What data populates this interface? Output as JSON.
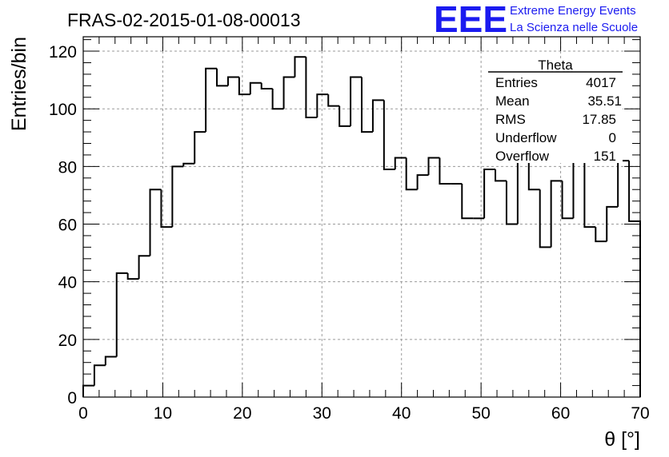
{
  "header": {
    "title": "FRAS-02-2015-01-08-00013",
    "logo_mark": "EEE",
    "logo_line1": "Extreme Energy Events",
    "logo_line2": "La Scienza nelle Scuole",
    "logo_color": "#1b1bf0"
  },
  "stats": {
    "name": "Theta",
    "rows": [
      {
        "label": "Entries",
        "value": "4017"
      },
      {
        "label": "Mean",
        "value": "35.51"
      },
      {
        "label": "RMS",
        "value": "17.85"
      },
      {
        "label": "Underflow",
        "value": "0"
      },
      {
        "label": "Overflow",
        "value": "151"
      }
    ]
  },
  "chart_data": {
    "type": "bar",
    "style": "step-histogram",
    "xlabel": "θ [°]",
    "ylabel": "Entries/bin",
    "xlim": [
      0,
      70
    ],
    "ylim": [
      0,
      125
    ],
    "bin_width": 1.4,
    "bin_low_edges": [
      0,
      1.4,
      2.8,
      4.2,
      5.6,
      7,
      8.4,
      9.8,
      11.2,
      12.6,
      14,
      15.4,
      16.8,
      18.2,
      19.6,
      21,
      22.4,
      23.8,
      25.2,
      26.6,
      28,
      29.4,
      30.8,
      32.2,
      33.6,
      35,
      36.4,
      37.8,
      39.2,
      40.6,
      42,
      43.4,
      44.8,
      46.2,
      47.6,
      49,
      50.4,
      51.8,
      53.2,
      54.6,
      56,
      57.4,
      58.8,
      60.2,
      61.6,
      63,
      64.4,
      65.8,
      67.2,
      68.6
    ],
    "values": [
      4,
      11,
      14,
      43,
      41,
      49,
      72,
      59,
      80,
      81,
      92,
      114,
      108,
      111,
      105,
      109,
      107,
      100,
      111,
      118,
      97,
      105,
      101,
      94,
      111,
      92,
      103,
      79,
      83,
      72,
      77,
      83,
      74,
      74,
      62,
      62,
      79,
      75,
      60,
      86,
      72,
      52,
      75,
      62,
      85,
      59,
      54,
      66,
      82,
      61
    ],
    "x_ticks": [
      "0",
      "10",
      "20",
      "30",
      "40",
      "50",
      "60",
      "70"
    ],
    "y_ticks": [
      "0",
      "20",
      "40",
      "60",
      "80",
      "100",
      "120"
    ],
    "grid": true,
    "line_color": "#000000",
    "grid_color": "#9a9a9a"
  }
}
